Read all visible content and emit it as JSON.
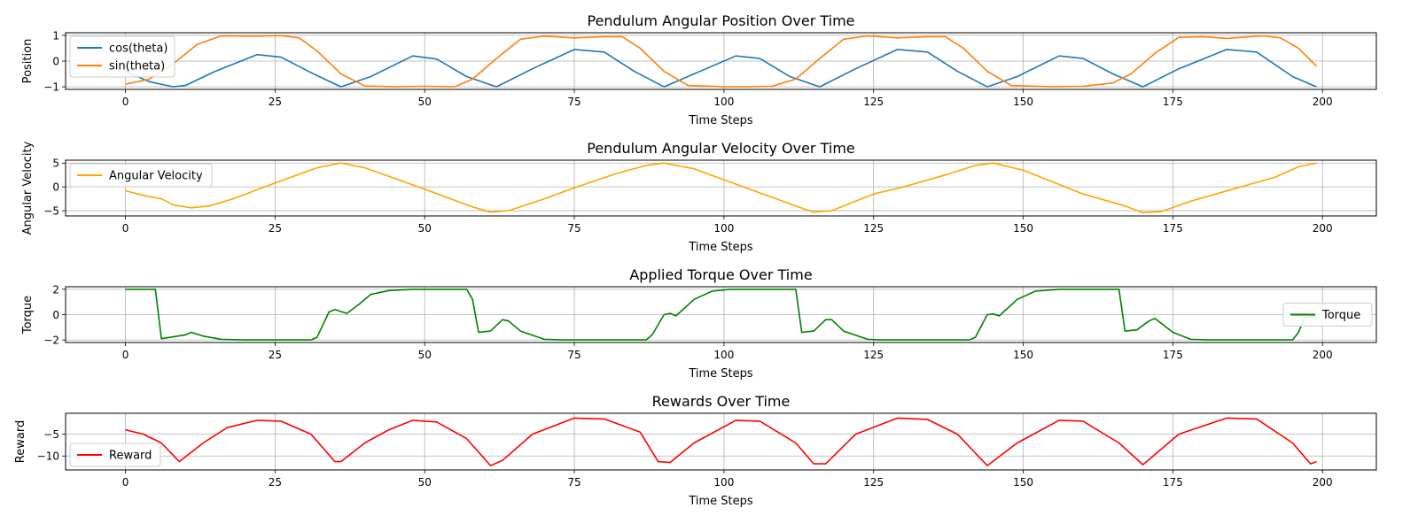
{
  "chart_data": [
    {
      "type": "line",
      "title": "Pendulum Angular Position Over Time",
      "xlabel": "Time Steps",
      "ylabel": "Position",
      "xlim": [
        -10,
        209
      ],
      "ylim": [
        -1.1,
        1.1
      ],
      "xticks": [
        0,
        25,
        50,
        75,
        100,
        125,
        150,
        175,
        200
      ],
      "yticks": [
        -1,
        0,
        1
      ],
      "grid": true,
      "legend_position": "upper-left",
      "series": [
        {
          "name": "cos(theta)",
          "color": "#1f77b4",
          "points": [
            [
              0,
              -0.4
            ],
            [
              4,
              -0.8
            ],
            [
              8,
              -1
            ],
            [
              10,
              -0.95
            ],
            [
              15,
              -0.4
            ],
            [
              22,
              0.25
            ],
            [
              26,
              0.15
            ],
            [
              31,
              -0.45
            ],
            [
              36,
              -1
            ],
            [
              41,
              -0.6
            ],
            [
              48,
              0.2
            ],
            [
              52,
              0.08
            ],
            [
              57,
              -0.6
            ],
            [
              62,
              -1
            ],
            [
              68,
              -0.3
            ],
            [
              75,
              0.45
            ],
            [
              80,
              0.35
            ],
            [
              85,
              -0.4
            ],
            [
              90,
              -1
            ],
            [
              95,
              -0.5
            ],
            [
              102,
              0.2
            ],
            [
              106,
              0.1
            ],
            [
              111,
              -0.6
            ],
            [
              116,
              -1
            ],
            [
              122,
              -0.3
            ],
            [
              129,
              0.45
            ],
            [
              134,
              0.35
            ],
            [
              139,
              -0.4
            ],
            [
              144,
              -1
            ],
            [
              149,
              -0.6
            ],
            [
              156,
              0.2
            ],
            [
              160,
              0.1
            ],
            [
              165,
              -0.5
            ],
            [
              170,
              -1
            ],
            [
              176,
              -0.3
            ],
            [
              184,
              0.45
            ],
            [
              189,
              0.35
            ],
            [
              195,
              -0.6
            ],
            [
              199,
              -1
            ]
          ]
        },
        {
          "name": "sin(theta)",
          "color": "#ff7f0e",
          "points": [
            [
              0,
              -0.9
            ],
            [
              4,
              -0.7
            ],
            [
              8,
              -0.1
            ],
            [
              12,
              0.65
            ],
            [
              16,
              0.98
            ],
            [
              22,
              0.97
            ],
            [
              26,
              0.99
            ],
            [
              29,
              0.9
            ],
            [
              32,
              0.4
            ],
            [
              36,
              -0.5
            ],
            [
              40,
              -0.97
            ],
            [
              45,
              -1
            ],
            [
              50,
              -0.98
            ],
            [
              55,
              -1
            ],
            [
              58,
              -0.7
            ],
            [
              62,
              0.1
            ],
            [
              66,
              0.85
            ],
            [
              70,
              0.97
            ],
            [
              75,
              0.9
            ],
            [
              80,
              0.95
            ],
            [
              83,
              0.95
            ],
            [
              86,
              0.5
            ],
            [
              90,
              -0.4
            ],
            [
              94,
              -0.95
            ],
            [
              100,
              -1
            ],
            [
              104,
              -1
            ],
            [
              108,
              -0.98
            ],
            [
              112,
              -0.7
            ],
            [
              116,
              0.1
            ],
            [
              120,
              0.85
            ],
            [
              124,
              0.98
            ],
            [
              129,
              0.9
            ],
            [
              134,
              0.95
            ],
            [
              137,
              0.95
            ],
            [
              140,
              0.5
            ],
            [
              144,
              -0.4
            ],
            [
              148,
              -0.95
            ],
            [
              155,
              -1
            ],
            [
              160,
              -0.98
            ],
            [
              165,
              -0.85
            ],
            [
              168,
              -0.5
            ],
            [
              172,
              0.3
            ],
            [
              176,
              0.92
            ],
            [
              180,
              0.95
            ],
            [
              184,
              0.88
            ],
            [
              190,
              0.98
            ],
            [
              193,
              0.9
            ],
            [
              196,
              0.5
            ],
            [
              199,
              -0.2
            ]
          ]
        }
      ]
    },
    {
      "type": "line",
      "title": "Pendulum Angular Velocity Over Time",
      "xlabel": "Time Steps",
      "ylabel": "Angular Velocity",
      "xlim": [
        -10,
        209
      ],
      "ylim": [
        -6.1,
        5.6
      ],
      "xticks": [
        0,
        25,
        50,
        75,
        100,
        125,
        150,
        175,
        200
      ],
      "yticks": [
        -5,
        0,
        5
      ],
      "grid": true,
      "legend_position": "upper-left",
      "series": [
        {
          "name": "Angular Velocity",
          "color": "#ffa500",
          "points": [
            [
              0,
              -0.8
            ],
            [
              3,
              -1.8
            ],
            [
              6,
              -2.5
            ],
            [
              8,
              -3.8
            ],
            [
              11,
              -4.4
            ],
            [
              14,
              -4
            ],
            [
              18,
              -2.5
            ],
            [
              25,
              0.8
            ],
            [
              32,
              4
            ],
            [
              36,
              5
            ],
            [
              40,
              4
            ],
            [
              50,
              -0.5
            ],
            [
              58,
              -4.2
            ],
            [
              61,
              -5.3
            ],
            [
              64,
              -5
            ],
            [
              70,
              -2.5
            ],
            [
              75,
              -0.2
            ],
            [
              82,
              2.8
            ],
            [
              87,
              4.5
            ],
            [
              90,
              5
            ],
            [
              95,
              3.8
            ],
            [
              105,
              -0.8
            ],
            [
              112,
              -4
            ],
            [
              115,
              -5.3
            ],
            [
              118,
              -5
            ],
            [
              125,
              -1.5
            ],
            [
              130,
              0
            ],
            [
              137,
              2.5
            ],
            [
              142,
              4.5
            ],
            [
              145,
              5
            ],
            [
              150,
              3.5
            ],
            [
              160,
              -1.5
            ],
            [
              167,
              -4
            ],
            [
              170,
              -5.4
            ],
            [
              173,
              -5.2
            ],
            [
              178,
              -3
            ],
            [
              185,
              -0.5
            ],
            [
              192,
              2
            ],
            [
              196,
              4.2
            ],
            [
              199,
              5
            ]
          ]
        }
      ]
    },
    {
      "type": "line",
      "title": "Applied Torque Over Time",
      "xlabel": "Time Steps",
      "ylabel": "Torque",
      "xlim": [
        -10,
        209
      ],
      "ylim": [
        -2.2,
        2.2
      ],
      "xticks": [
        0,
        25,
        50,
        75,
        100,
        125,
        150,
        175,
        200
      ],
      "yticks": [
        -2,
        0,
        2
      ],
      "grid": true,
      "legend_position": "center-right",
      "series": [
        {
          "name": "Torque",
          "color": "#008000",
          "points": [
            [
              0,
              2
            ],
            [
              5,
              2
            ],
            [
              6,
              -1.9
            ],
            [
              8,
              -1.75
            ],
            [
              10,
              -1.6
            ],
            [
              11,
              -1.4
            ],
            [
              13,
              -1.7
            ],
            [
              16,
              -1.95
            ],
            [
              20,
              -2
            ],
            [
              31,
              -2
            ],
            [
              32,
              -1.8
            ],
            [
              34,
              0.2
            ],
            [
              35,
              0.4
            ],
            [
              37,
              0.1
            ],
            [
              39,
              0.8
            ],
            [
              41,
              1.6
            ],
            [
              44,
              1.9
            ],
            [
              48,
              2
            ],
            [
              57,
              2
            ],
            [
              58,
              1.2
            ],
            [
              59,
              -1.4
            ],
            [
              61,
              -1.3
            ],
            [
              63,
              -0.4
            ],
            [
              64,
              -0.5
            ],
            [
              66,
              -1.3
            ],
            [
              70,
              -1.95
            ],
            [
              73,
              -2
            ],
            [
              87,
              -2
            ],
            [
              88,
              -1.6
            ],
            [
              90,
              0
            ],
            [
              91,
              0.1
            ],
            [
              92,
              -0.1
            ],
            [
              95,
              1.2
            ],
            [
              98,
              1.85
            ],
            [
              101,
              2
            ],
            [
              112,
              2
            ],
            [
              113,
              -1.4
            ],
            [
              115,
              -1.3
            ],
            [
              117,
              -0.4
            ],
            [
              118,
              -0.4
            ],
            [
              120,
              -1.3
            ],
            [
              124,
              -1.95
            ],
            [
              126,
              -2
            ],
            [
              141,
              -2
            ],
            [
              142,
              -1.8
            ],
            [
              144,
              0
            ],
            [
              145,
              0.05
            ],
            [
              146,
              -0.1
            ],
            [
              149,
              1.2
            ],
            [
              152,
              1.85
            ],
            [
              156,
              2
            ],
            [
              166,
              2
            ],
            [
              167,
              -1.3
            ],
            [
              169,
              -1.2
            ],
            [
              171,
              -0.5
            ],
            [
              172,
              -0.3
            ],
            [
              175,
              -1.4
            ],
            [
              178,
              -1.95
            ],
            [
              181,
              -2
            ],
            [
              195,
              -2
            ],
            [
              196,
              -1.4
            ],
            [
              197,
              -0.2
            ],
            [
              199,
              -0.1
            ]
          ]
        }
      ]
    },
    {
      "type": "line",
      "title": "Rewards Over Time",
      "xlabel": "Time Steps",
      "ylabel": "Reward",
      "xlim": [
        -10,
        209
      ],
      "ylim": [
        -13.2,
        -0.2
      ],
      "xticks": [
        0,
        25,
        50,
        75,
        100,
        125,
        150,
        175,
        200
      ],
      "yticks": [
        -5,
        -10
      ],
      "grid": true,
      "legend_position": "lower-left",
      "series": [
        {
          "name": "Reward",
          "color": "#ff0000",
          "points": [
            [
              0,
              -4
            ],
            [
              3,
              -5
            ],
            [
              6,
              -7
            ],
            [
              9,
              -11.3
            ],
            [
              13,
              -7
            ],
            [
              17,
              -3.5
            ],
            [
              22,
              -1.8
            ],
            [
              26,
              -2
            ],
            [
              31,
              -5
            ],
            [
              35,
              -11.3
            ],
            [
              36,
              -11.3
            ],
            [
              40,
              -7
            ],
            [
              44,
              -4
            ],
            [
              48,
              -1.8
            ],
            [
              52,
              -2.2
            ],
            [
              57,
              -6
            ],
            [
              61,
              -12.2
            ],
            [
              63,
              -11
            ],
            [
              68,
              -5
            ],
            [
              75,
              -1.3
            ],
            [
              80,
              -1.5
            ],
            [
              86,
              -4.5
            ],
            [
              89,
              -11.3
            ],
            [
              91,
              -11.5
            ],
            [
              95,
              -7
            ],
            [
              102,
              -1.8
            ],
            [
              106,
              -2
            ],
            [
              112,
              -7
            ],
            [
              115,
              -11.8
            ],
            [
              117,
              -11.8
            ],
            [
              122,
              -5
            ],
            [
              129,
              -1.3
            ],
            [
              134,
              -1.6
            ],
            [
              139,
              -5
            ],
            [
              144,
              -12.2
            ],
            [
              149,
              -7
            ],
            [
              156,
              -1.8
            ],
            [
              160,
              -2
            ],
            [
              166,
              -7
            ],
            [
              170,
              -12
            ],
            [
              176,
              -5
            ],
            [
              184,
              -1.3
            ],
            [
              189,
              -1.5
            ],
            [
              195,
              -7
            ],
            [
              198,
              -11.8
            ],
            [
              199,
              -11.3
            ]
          ]
        }
      ]
    }
  ]
}
